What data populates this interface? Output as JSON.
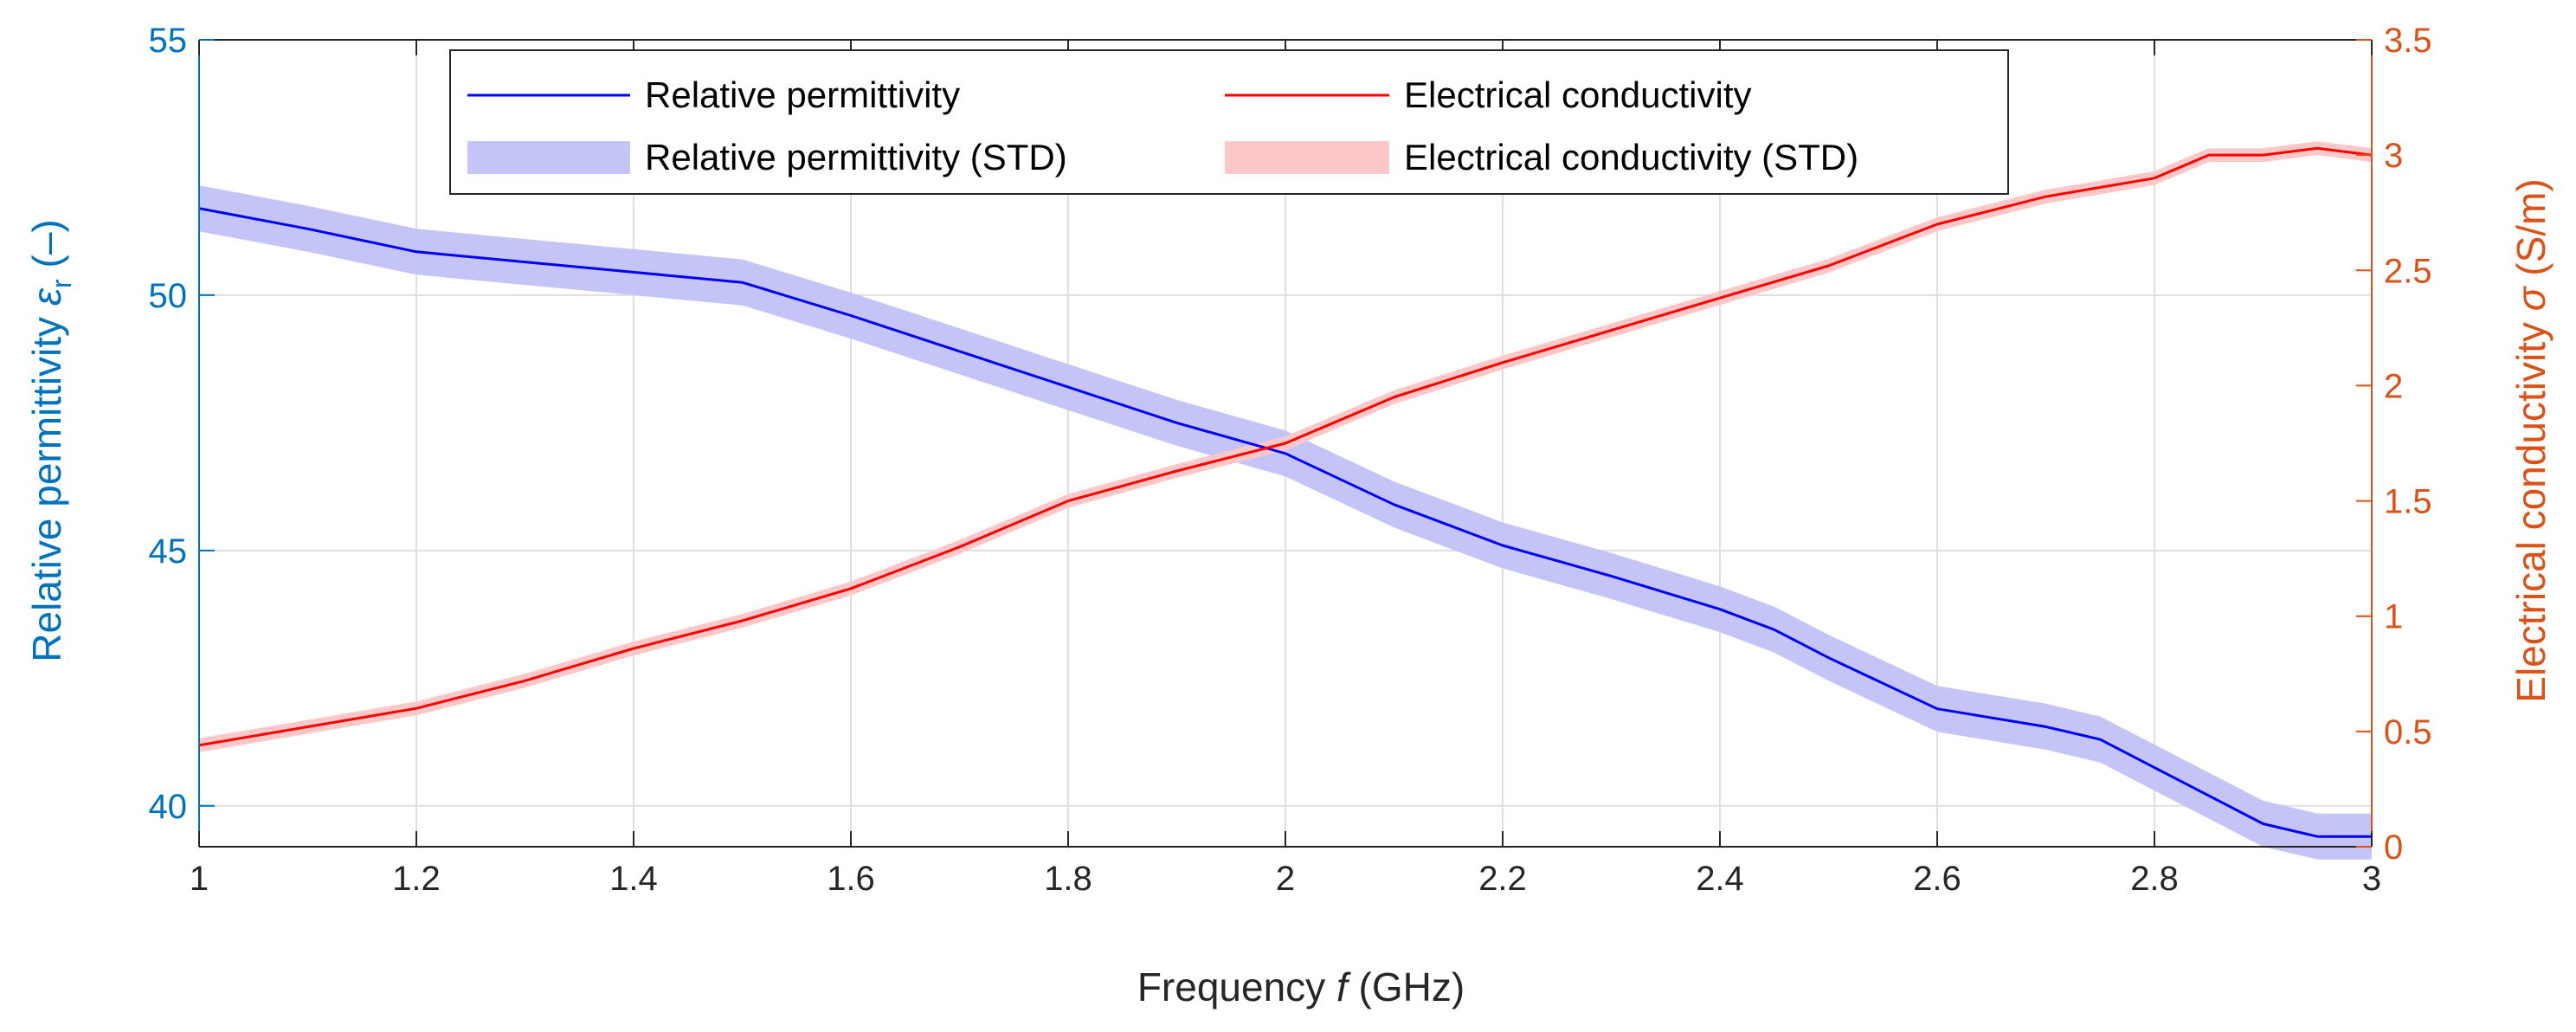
{
  "chart_data": {
    "type": "line",
    "title": "",
    "xlabel": {
      "prefix": "Frequency ",
      "symbol": "f",
      "suffix": " (GHz)"
    },
    "ylabel_left": {
      "prefix": "Relative permittivity ",
      "symbol": "ε",
      "subscript": "r",
      "suffix": " (–)"
    },
    "ylabel_right": {
      "prefix": "Electrical conductivity ",
      "symbol": "σ",
      "suffix": " (S/m)"
    },
    "xlim": [
      1,
      3
    ],
    "ylim_left": [
      39.2,
      55
    ],
    "ylim_right": [
      0,
      3.5
    ],
    "xticks": [
      "1",
      "1.2",
      "1.4",
      "1.6",
      "1.8",
      "2",
      "2.2",
      "2.4",
      "2.6",
      "2.8",
      "3"
    ],
    "yticks_left": [
      "40",
      "45",
      "50",
      "55"
    ],
    "yticks_right": [
      "0",
      "0.5",
      "1",
      "1.5",
      "2",
      "2.5",
      "3",
      "3.5"
    ],
    "grid": true,
    "legend_position": "top-center",
    "colors": {
      "left_axis": "#0072BD",
      "right_axis": "#D95319",
      "permittivity": "#0000FF",
      "permittivity_std": "#C4C4F6",
      "conductivity": "#FF0000",
      "conductivity_std": "#FFC8C8",
      "grid": "#DFDFDF",
      "axes": "#262626"
    },
    "series": [
      {
        "name": "Relative permittivity",
        "axis": "left",
        "std_name": "Relative permittivity (STD)",
        "std": 0.45,
        "x": [
          1.0,
          1.1,
          1.2,
          1.3,
          1.4,
          1.5,
          1.6,
          1.7,
          1.8,
          1.9,
          2.0,
          2.1,
          2.2,
          2.3,
          2.4,
          2.45,
          2.5,
          2.6,
          2.7,
          2.75,
          2.8,
          2.9,
          2.95,
          3.0
        ],
        "values": [
          51.7,
          51.3,
          50.85,
          50.65,
          50.45,
          50.25,
          49.6,
          48.9,
          48.2,
          47.5,
          46.9,
          45.9,
          45.1,
          44.5,
          43.85,
          43.45,
          42.9,
          41.9,
          41.55,
          41.3,
          40.75,
          39.65,
          39.4,
          39.4
        ]
      },
      {
        "name": "Electrical conductivity",
        "axis": "right",
        "std_name": "Electrical conductivity (STD)",
        "std": 0.03,
        "x": [
          1.0,
          1.1,
          1.2,
          1.3,
          1.4,
          1.5,
          1.6,
          1.7,
          1.8,
          1.9,
          2.0,
          2.1,
          2.2,
          2.3,
          2.4,
          2.5,
          2.6,
          2.7,
          2.8,
          2.85,
          2.9,
          2.95,
          3.0
        ],
        "values": [
          0.44,
          0.52,
          0.6,
          0.72,
          0.86,
          0.98,
          1.12,
          1.3,
          1.5,
          1.63,
          1.75,
          1.95,
          2.1,
          2.24,
          2.38,
          2.52,
          2.7,
          2.82,
          2.9,
          3.0,
          3.0,
          3.03,
          3.0
        ]
      }
    ]
  }
}
